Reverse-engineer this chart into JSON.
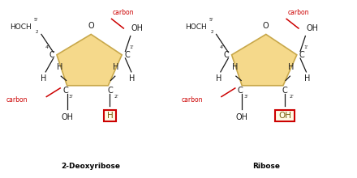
{
  "bg_color": "#ffffff",
  "pentagon_fill": "#f5d98b",
  "pentagon_edge": "#c8a84b",
  "line_color": "#1a1a1a",
  "red_color": "#cc0000",
  "box_color": "#cc0000",
  "title_color": "#000000",
  "label1": "2-Deoxyribose",
  "label2": "Ribose",
  "box1_text": "H",
  "box2_text": "OH",
  "box_facecolor": "#fffbe6",
  "inner_H_color": "#5a4a00",
  "C_color": "#1a1a1a"
}
